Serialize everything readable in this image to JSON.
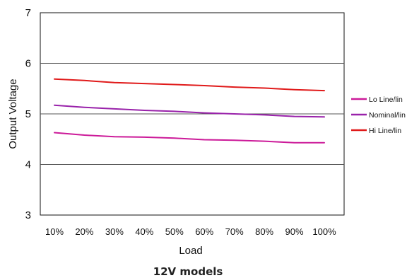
{
  "chart_data": {
    "type": "line",
    "caption": "12V models",
    "xlabel": "Load",
    "ylabel": "Output Voltage",
    "categories": [
      "10%",
      "20%",
      "30%",
      "40%",
      "50%",
      "60%",
      "70%",
      "80%",
      "90%",
      "100%"
    ],
    "y_ticks": [
      "3",
      "4",
      "5",
      "6",
      "7"
    ],
    "ylim": [
      3,
      7
    ],
    "grid": "horizontal",
    "legend_position": "right",
    "series": [
      {
        "name": "Lo Line/lin",
        "color": "#cc1a99",
        "values": [
          4.63,
          4.58,
          4.55,
          4.54,
          4.52,
          4.49,
          4.48,
          4.46,
          4.43,
          4.43
        ]
      },
      {
        "name": "Nominal/lin",
        "color": "#9922aa",
        "values": [
          5.17,
          5.13,
          5.1,
          5.07,
          5.05,
          5.02,
          5.0,
          4.98,
          4.95,
          4.94
        ]
      },
      {
        "name": "Hi Line/lin",
        "color": "#e01a1a",
        "values": [
          5.69,
          5.66,
          5.62,
          5.6,
          5.58,
          5.56,
          5.53,
          5.51,
          5.48,
          5.46
        ]
      }
    ]
  }
}
